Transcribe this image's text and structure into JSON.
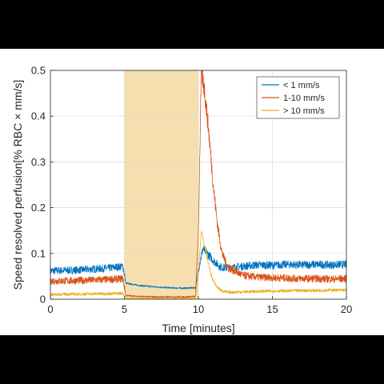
{
  "chart_data": {
    "type": "line",
    "title": "",
    "xlabel": "Time [minutes]",
    "ylabel": "Speed resolved perfusion[% RBC × mm/s]",
    "xlim": [
      0,
      20
    ],
    "ylim": [
      0,
      0.5
    ],
    "x_ticks": [
      "0",
      "5",
      "10",
      "15",
      "20"
    ],
    "y_ticks": [
      "0",
      "0.1",
      "0.2",
      "0.3",
      "0.4",
      "0.5"
    ],
    "grid": true,
    "legend_position": "top-right",
    "shaded_region": {
      "x_start": 5,
      "x_end": 10,
      "color": "#f5dfae"
    },
    "series": [
      {
        "name": "< 1 mm/s",
        "color": "#0072bd",
        "x": [
          0,
          1,
          2,
          3,
          4,
          4.9,
          5.1,
          6,
          7,
          8,
          9,
          9.8,
          10.1,
          10.3,
          10.6,
          11,
          11.5,
          12,
          13,
          14,
          15,
          16,
          17,
          18,
          19,
          20
        ],
        "y": [
          0.062,
          0.063,
          0.064,
          0.066,
          0.068,
          0.072,
          0.035,
          0.03,
          0.027,
          0.025,
          0.024,
          0.025,
          0.08,
          0.11,
          0.1,
          0.085,
          0.07,
          0.068,
          0.072,
          0.075,
          0.074,
          0.076,
          0.075,
          0.076,
          0.075,
          0.076
        ]
      },
      {
        "name": "1-10 mm/s",
        "color": "#d95319",
        "x": [
          0,
          1,
          2,
          3,
          4,
          4.9,
          5.1,
          6,
          7,
          8,
          9,
          9.8,
          10.0,
          10.2,
          10.4,
          10.6,
          10.8,
          11.0,
          11.3,
          11.6,
          12,
          13,
          14,
          15,
          16,
          17,
          18,
          19,
          20
        ],
        "y": [
          0.04,
          0.04,
          0.041,
          0.042,
          0.043,
          0.045,
          0.008,
          0.006,
          0.005,
          0.005,
          0.005,
          0.006,
          0.15,
          0.5,
          0.46,
          0.4,
          0.33,
          0.25,
          0.16,
          0.1,
          0.07,
          0.052,
          0.048,
          0.047,
          0.046,
          0.045,
          0.045,
          0.044,
          0.045
        ]
      },
      {
        "name": "> 10 mm/s",
        "color": "#edb120",
        "x": [
          0,
          1,
          2,
          3,
          4,
          4.9,
          5.1,
          6,
          7,
          8,
          9,
          9.8,
          10.0,
          10.2,
          10.4,
          10.6,
          10.8,
          11.0,
          11.3,
          11.6,
          12,
          13,
          14,
          15,
          16,
          17,
          18,
          19,
          20
        ],
        "y": [
          0.01,
          0.011,
          0.011,
          0.012,
          0.012,
          0.013,
          0.002,
          0.002,
          0.002,
          0.002,
          0.002,
          0.002,
          0.06,
          0.15,
          0.12,
          0.09,
          0.06,
          0.04,
          0.025,
          0.018,
          0.015,
          0.016,
          0.017,
          0.018,
          0.018,
          0.019,
          0.019,
          0.02,
          0.02
        ]
      }
    ]
  }
}
